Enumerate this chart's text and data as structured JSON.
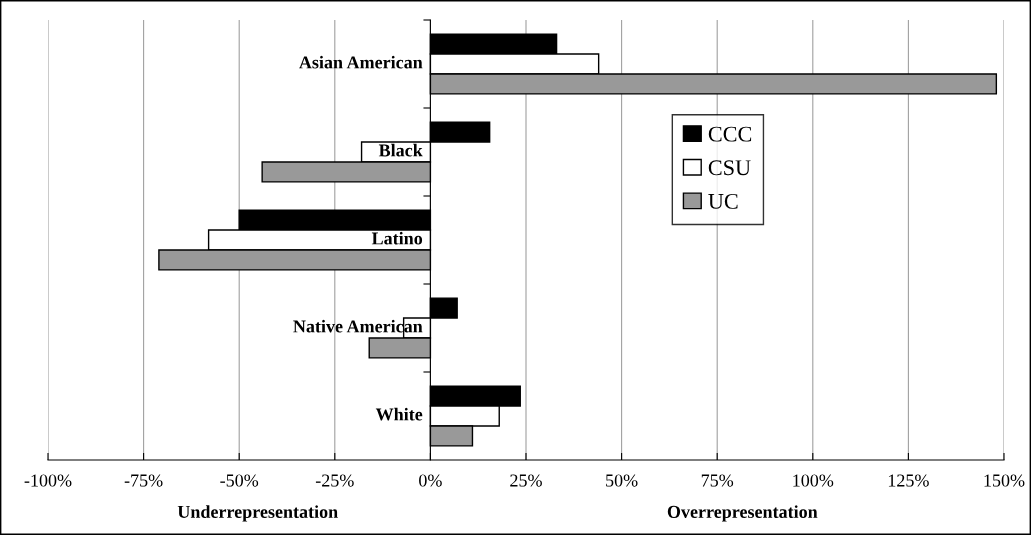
{
  "chart_data": {
    "type": "bar",
    "orientation": "horizontal",
    "categories": [
      "Asian American",
      "Black",
      "Latino",
      "Native American",
      "White"
    ],
    "series": [
      {
        "name": "CCC",
        "color": "#000000",
        "values": [
          33,
          15.5,
          -50,
          7,
          23.5
        ]
      },
      {
        "name": "CSU",
        "color": "#ffffff",
        "values": [
          44,
          -18,
          -58,
          -7,
          18
        ]
      },
      {
        "name": "UC",
        "color": "#999999",
        "values": [
          148,
          -44,
          -71,
          -16,
          11
        ]
      }
    ],
    "xlim": [
      -100,
      150
    ],
    "xticks": [
      {
        "value": -100,
        "label": "-100%"
      },
      {
        "value": -75,
        "label": "-75%"
      },
      {
        "value": -50,
        "label": "-50%"
      },
      {
        "value": -25,
        "label": "-25%"
      },
      {
        "value": 0,
        "label": "0%"
      },
      {
        "value": 25,
        "label": "25%"
      },
      {
        "value": 50,
        "label": "50%"
      },
      {
        "value": 75,
        "label": "75%"
      },
      {
        "value": 100,
        "label": "100%"
      },
      {
        "value": 125,
        "label": "125%"
      },
      {
        "value": 150,
        "label": "150%"
      }
    ],
    "annotations": [
      "Underrepresentation",
      "Overrepresentation"
    ],
    "grid": "x",
    "legend": "right"
  }
}
